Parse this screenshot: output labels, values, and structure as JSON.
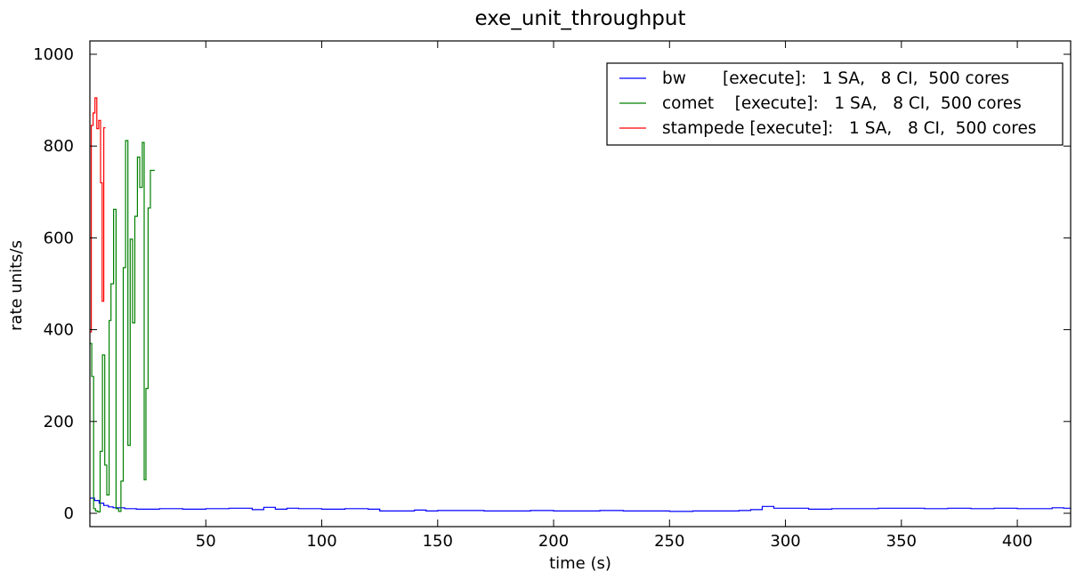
{
  "chart_data": {
    "type": "line",
    "title": "exe_unit_throughput",
    "xlabel": "time (s)",
    "ylabel": "rate units/s",
    "xlim": [
      0,
      423
    ],
    "ylim": [
      0,
      1000
    ],
    "x_ticks": [
      50,
      100,
      150,
      200,
      250,
      300,
      350,
      400
    ],
    "y_ticks": [
      0,
      200,
      400,
      600,
      800,
      1000
    ],
    "grid": false,
    "legend_position": "top-right",
    "step": true,
    "series": [
      {
        "name": "bw       [execute]:   1 SA,   8 CI,  500 cores",
        "color": "#0000ff",
        "x": [
          0,
          2,
          4,
          6,
          8,
          10,
          15,
          20,
          25,
          30,
          40,
          50,
          60,
          70,
          75,
          80,
          85,
          90,
          100,
          110,
          120,
          125,
          140,
          145,
          150,
          160,
          170,
          180,
          190,
          200,
          210,
          220,
          230,
          240,
          250,
          260,
          270,
          280,
          285,
          290,
          295,
          300,
          310,
          320,
          330,
          340,
          350,
          360,
          370,
          380,
          390,
          400,
          410,
          415,
          420,
          423
        ],
        "y": [
          33,
          28,
          22,
          17,
          14,
          12,
          10,
          9,
          9,
          10,
          9,
          10,
          11,
          8,
          13,
          9,
          11,
          10,
          9,
          10,
          9,
          5,
          7,
          5,
          6,
          6,
          5,
          5,
          6,
          5,
          5,
          6,
          5,
          5,
          4,
          5,
          5,
          6,
          8,
          15,
          11,
          11,
          9,
          10,
          10,
          11,
          11,
          10,
          11,
          10,
          11,
          10,
          10,
          12,
          11,
          12
        ]
      },
      {
        "name": "comet    [execute]:   1 SA,   8 CI,  500 cores",
        "color": "#008000",
        "x": [
          0,
          0.8,
          1.6,
          2.4,
          3.4,
          4.4,
          5.4,
          6.4,
          7.3,
          8.3,
          9.1,
          10.2,
          11.3,
          12.4,
          13.4,
          14.4,
          15.4,
          16.4,
          17.4,
          18.4,
          19.4,
          20.5,
          21.5,
          22.6,
          23.4,
          24.2,
          25.1,
          26.1,
          27.0,
          28.0
        ],
        "y": [
          370,
          298,
          10,
          5,
          3,
          135,
          345,
          105,
          40,
          420,
          500,
          662,
          10,
          4,
          70,
          535,
          812,
          148,
          597,
          415,
          647,
          776,
          710,
          808,
          73,
          272,
          665,
          747,
          747,
          747
        ]
      },
      {
        "name": "stampede [execute]:   1 SA,   8 CI,  500 cores",
        "color": "#ff0000",
        "x": [
          0,
          0.6,
          1.4,
          2.2,
          3.0,
          3.8,
          4.6,
          5.3,
          6.0,
          6.7
        ],
        "y": [
          395,
          845,
          872,
          905,
          838,
          856,
          720,
          462,
          840,
          840
        ]
      }
    ]
  }
}
